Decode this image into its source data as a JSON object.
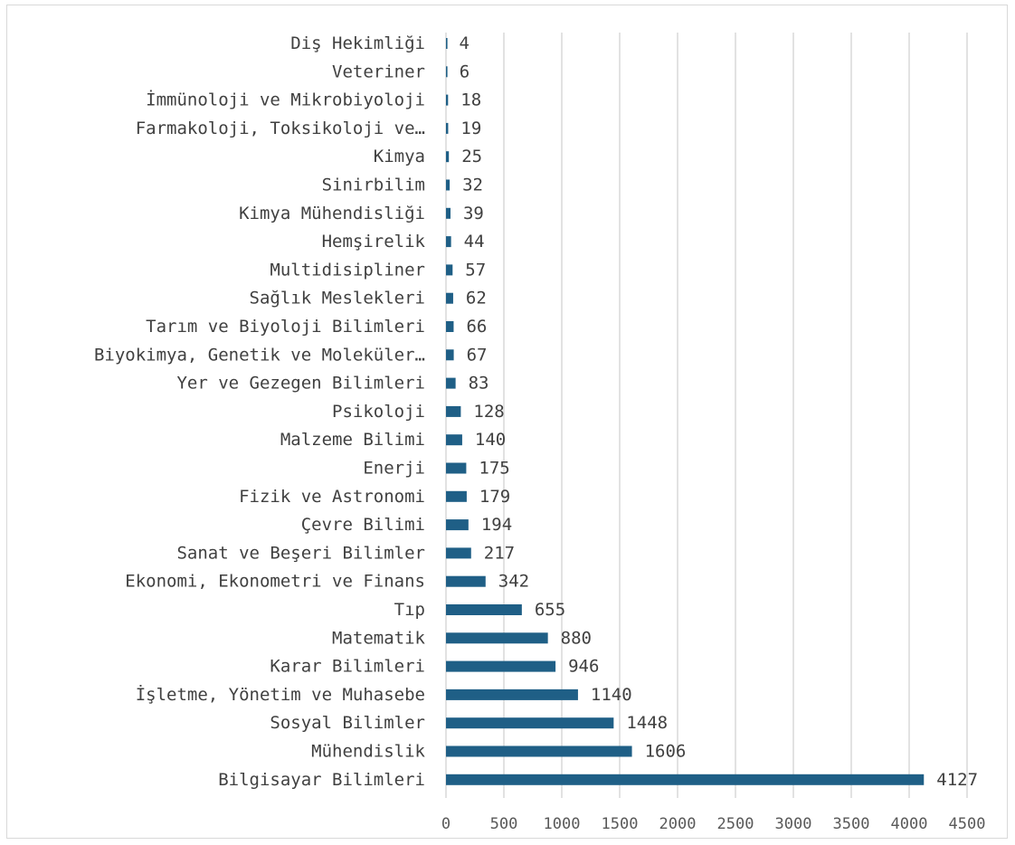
{
  "chart_data": {
    "type": "bar",
    "orientation": "horizontal",
    "title": "",
    "xlabel": "",
    "ylabel": "",
    "xlim": [
      0,
      4500
    ],
    "x_ticks": [
      0,
      500,
      1000,
      1500,
      2000,
      2500,
      3000,
      3500,
      4000,
      4500
    ],
    "grid": "vertical",
    "legend": "none",
    "bar_color": "#1f5f86",
    "categories": [
      "Diş Hekimliği",
      "Veteriner",
      "İmmünoloji ve Mikrobiyoloji",
      "Farmakoloji, Toksikoloji ve…",
      "Kimya",
      "Sinirbilim",
      "Kimya Mühendisliği",
      "Hemşirelik",
      "Multidisipliner",
      "Sağlık Meslekleri",
      "Tarım ve Biyoloji Bilimleri",
      "Biyokimya, Genetik ve Moleküler…",
      "Yer ve Gezegen Bilimleri",
      "Psikoloji",
      "Malzeme Bilimi",
      "Enerji",
      "Fizik ve Astronomi",
      "Çevre Bilimi",
      "Sanat ve Beşeri Bilimler",
      "Ekonomi, Ekonometri ve Finans",
      "Tıp",
      "Matematik",
      "Karar Bilimleri",
      "İşletme, Yönetim ve Muhasebe",
      "Sosyal Bilimler",
      "Mühendislik",
      "Bilgisayar Bilimleri"
    ],
    "values": [
      4,
      6,
      18,
      19,
      25,
      32,
      39,
      44,
      57,
      62,
      66,
      67,
      83,
      128,
      140,
      175,
      179,
      194,
      217,
      342,
      655,
      880,
      946,
      1140,
      1448,
      1606,
      4127
    ]
  }
}
